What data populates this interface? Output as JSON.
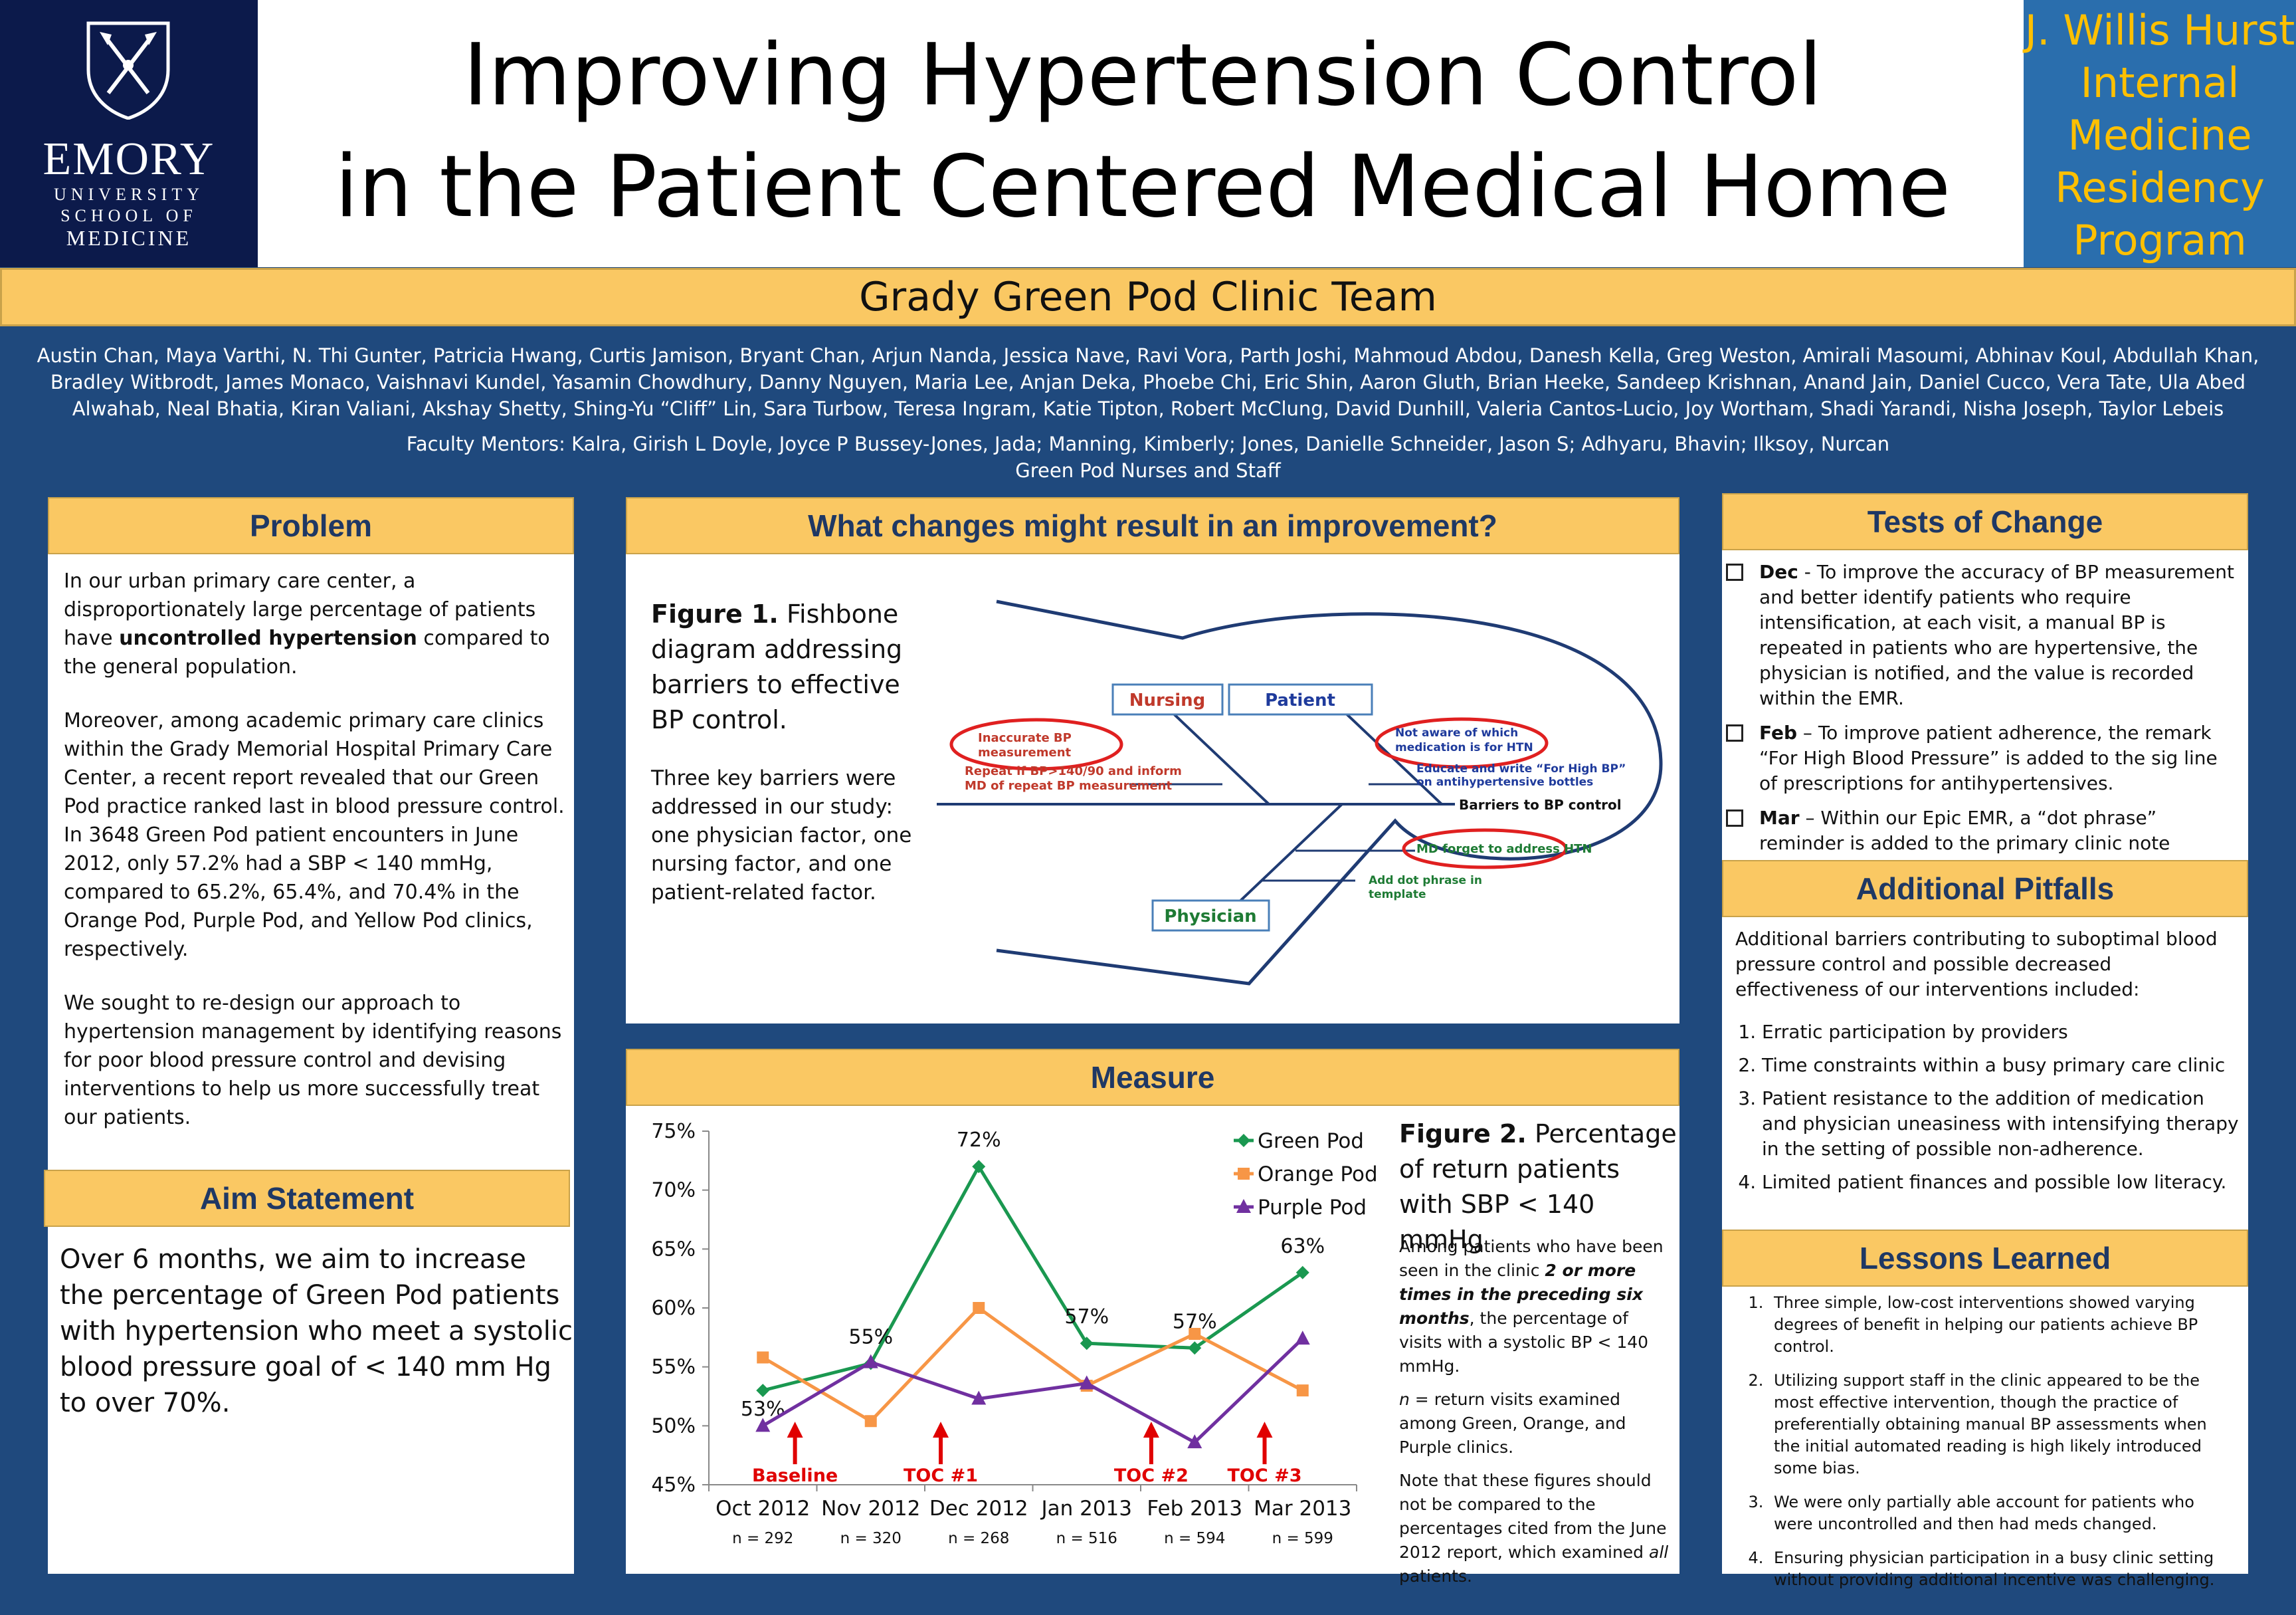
{
  "logo": {
    "line1": "EMORY",
    "line2": "UNIVERSITY",
    "line3": "SCHOOL OF",
    "line4": "MEDICINE"
  },
  "title": {
    "line1": "Improving Hypertension Control",
    "line2": "in the Patient Centered Medical Home"
  },
  "program": {
    "lines": [
      "J. Willis Hurst",
      "Internal",
      "Medicine",
      "Residency",
      "Program"
    ]
  },
  "team": "Grady Green Pod Clinic Team",
  "authors": "Austin Chan, Maya Varthi, N. Thi Gunter, Patricia Hwang, Curtis Jamison, Bryant Chan, Arjun Nanda, Jessica Nave, Ravi Vora, Parth Joshi, Mahmoud Abdou, Danesh Kella, Greg Weston, Amirali Masoumi, Abhinav Koul, Abdullah Khan, Bradley Witbrodt, James Monaco, Vaishnavi Kundel, Yasamin Chowdhury, Danny Nguyen, Maria Lee, Anjan Deka, Phoebe Chi, Eric Shin, Aaron Gluth, Brian Heeke, Sandeep Krishnan, Anand Jain, Daniel Cucco, Vera Tate, Ula Abed Alwahab, Neal Bhatia, Kiran Valiani, Akshay Shetty, Shing-Yu “Cliff” Lin, Sara Turbow, Teresa Ingram, Katie Tipton, Robert McClung, David Dunhill, Valeria Cantos-Lucio, Joy Wortham, Shadi Yarandi, Nisha Joseph, Taylor Lebeis",
  "mentors": {
    "line1": "Faculty Mentors: Kalra, Girish L Doyle, Joyce P Bussey-Jones, Jada; Manning, Kimberly; Jones, Danielle Schneider, Jason S; Adhyaru, Bhavin; Ilksoy, Nurcan",
    "line2": "Green Pod Nurses and Staff"
  },
  "problem": {
    "heading": "Problem",
    "p1_before": "In our urban primary care center, a disproportionately large percentage of patients have ",
    "p1_bold": "uncontrolled hypertension",
    "p1_after": " compared to the general population.",
    "p2": "Moreover, among academic primary care clinics within the Grady Memorial Hospital Primary Care Center, a recent report revealed that our Green Pod practice ranked last in blood pressure control. In 3648 Green Pod patient encounters in June 2012, only 57.2% had a SBP < 140 mmHg, compared to 65.2%, 65.4%, and 70.4% in the Orange Pod, Purple Pod, and Yellow Pod clinics, respectively.",
    "p3": "We sought to re-design our approach to hypertension management by identifying reasons for poor blood pressure control and devising interventions to help us more successfully treat our patients."
  },
  "aim": {
    "heading": "Aim Statement",
    "text": "Over 6 months, we aim to increase the percentage of Green Pod patients with hypertension who meet a systolic blood pressure goal of < 140 mm Hg to over 70%."
  },
  "changes": {
    "heading": "What changes might result in an improvement?",
    "fig_label": "Figure 1.",
    "fig_caption": " Fishbone diagram addressing barriers to effective BP control.",
    "body": "Three key barriers were addressed in our study: one physician factor, one nursing factor, and one patient-related factor.",
    "fishbone": {
      "nursing": "Nursing",
      "patient": "Patient",
      "physician": "Physician",
      "inaccurate_1": "Inaccurate BP",
      "inaccurate_2": "measurement",
      "repeat_1": "Repeat if BP>140/90 and inform",
      "repeat_2": "MD of repeat BP measurement",
      "notaware_1": "Not aware of which",
      "notaware_2": "medication is for HTN",
      "educate_1": "Educate and write “For High BP”",
      "educate_2": "on antihypertensive bottles",
      "barriers": "Barriers to BP control",
      "mdforget": "MD forget to address HTN",
      "dot_1": "Add dot phrase in",
      "dot_2": "template"
    }
  },
  "measure": {
    "heading": "Measure",
    "fig_label": "Figure 2.",
    "fig_caption": " Percentage of return patients with SBP < 140 mmHg",
    "note1_a": "Among patients who have been seen in the clinic ",
    "note1_b": "2 or more times in the preceding six months",
    "note1_c": ", the percentage of visits with a systolic BP < 140 mmHg.",
    "note2_a": "n",
    "note2_b": " = return visits examined among Green, Orange, and Purple clinics.",
    "note3_a": "Note that these figures should not be compared to the percentages cited from the June 2012 report, which examined ",
    "note3_b": "all",
    "note3_c": " patients."
  },
  "chart_data": {
    "type": "line",
    "title": "",
    "xlabel": "",
    "ylabel": "",
    "categories": [
      "Oct 2012",
      "Nov 2012",
      "Dec 2012",
      "Jan 2013",
      "Feb 2013",
      "Mar 2013"
    ],
    "n_labels": [
      "n = 292",
      "n = 320",
      "n = 268",
      "n = 516",
      "n = 594",
      "n = 599"
    ],
    "ylim": [
      45,
      75
    ],
    "yticks": [
      "45%",
      "50%",
      "55%",
      "60%",
      "65%",
      "70%",
      "75%"
    ],
    "series": [
      {
        "name": "Green Pod",
        "color": "#1a9850",
        "marker": "diamond",
        "values": [
          53,
          55.3,
          72,
          57,
          56.6,
          63
        ],
        "labels": [
          "53%",
          "55%",
          "72%",
          "57%",
          "57%",
          "63%"
        ]
      },
      {
        "name": "Orange Pod",
        "color": "#f79646",
        "marker": "square",
        "values": [
          55.8,
          50.4,
          60,
          53.4,
          57.8,
          53
        ]
      },
      {
        "name": "Purple Pod",
        "color": "#7030a0",
        "marker": "triangle",
        "values": [
          50,
          55.4,
          52.3,
          53.6,
          48.6,
          57.4
        ]
      }
    ],
    "annotations": [
      {
        "label": "Baseline",
        "x_index": 0.15
      },
      {
        "label": "TOC #1",
        "x_index": 1.5
      },
      {
        "label": "TOC #2",
        "x_index": 3.45
      },
      {
        "label": "TOC #3",
        "x_index": 4.5
      }
    ],
    "legend": "top-right"
  },
  "tests": {
    "heading": "Tests of Change",
    "items": [
      {
        "month": "Dec",
        "text": "  - To improve the accuracy of BP measurement and better identify patients who require intensification, at each visit, a manual BP is repeated in patients who are hypertensive, the physician is notified, and the value is recorded within the EMR."
      },
      {
        "month": "Feb",
        "text": " – To improve patient adherence, the remark “For High Blood Pressure” is added to the sig line of prescriptions for antihypertensives."
      },
      {
        "month": "Mar",
        "text": " – Within our Epic EMR, a “dot phrase” reminder is added to the primary clinic note template that prompts physicians to address HTN."
      }
    ]
  },
  "pitfalls": {
    "heading": "Additional Pitfalls",
    "intro": "Additional barriers contributing to suboptimal blood pressure control and possible decreased effectiveness of our interventions included:",
    "items": [
      "Erratic participation by providers",
      "Time constraints within a busy primary care clinic",
      "Patient resistance to the addition of medication and physician uneasiness with intensifying therapy in the setting of possible non-adherence.",
      "Limited patient finances and possible low literacy."
    ]
  },
  "lessons": {
    "heading": "Lessons Learned",
    "items": [
      "Three simple, low-cost interventions showed varying degrees of benefit in helping our patients achieve BP control.",
      "Utilizing support staff in the clinic appeared to be the most effective intervention, though the practice of preferentially obtaining manual BP assessments when the initial automated reading is high likely introduced some bias.",
      "We were only partially able account for patients who were uncontrolled and then had meds changed.",
      "Ensuring physician participation in a busy clinic setting without providing additional incentive was challenging."
    ]
  }
}
